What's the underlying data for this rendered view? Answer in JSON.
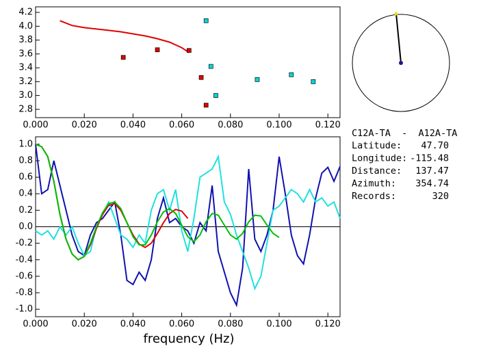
{
  "chart_data": [
    {
      "type": "scatter",
      "xlim": [
        0,
        0.125
      ],
      "xticks": [
        {
          "value": 0,
          "label": "0.000"
        },
        {
          "value": 0.02,
          "label": "0.020"
        },
        {
          "value": 0.04,
          "label": "0.040"
        },
        {
          "value": 0.06,
          "label": "0.060"
        },
        {
          "value": 0.08,
          "label": "0.080"
        },
        {
          "value": 0.1,
          "label": "0.100"
        },
        {
          "value": 0.12,
          "label": "0.120"
        }
      ],
      "ylim": [
        2.68,
        4.28
      ],
      "yticks": [
        2.8,
        {
          "value": 3,
          "label": "3.0"
        },
        3.2,
        3.4,
        3.6,
        3.8,
        {
          "value": 4,
          "label": "4.0"
        },
        4.2
      ],
      "series": [
        {
          "color": "#e00000",
          "mode": "line",
          "x": [
            0.01,
            0.015,
            0.02,
            0.025,
            0.03,
            0.035,
            0.04,
            0.045,
            0.05,
            0.055,
            0.06,
            0.063
          ],
          "values": [
            4.08,
            4.01,
            3.98,
            3.96,
            3.94,
            3.92,
            3.89,
            3.86,
            3.82,
            3.77,
            3.69,
            3.62
          ]
        },
        {
          "color": "#e00000",
          "mode": "marker",
          "x": [
            0.036,
            0.05,
            0.063,
            0.068,
            0.07
          ],
          "values": [
            3.55,
            3.66,
            3.65,
            3.26,
            2.86
          ]
        },
        {
          "color": "#00d8d8",
          "mode": "marker",
          "x": [
            0.07,
            0.072,
            0.074,
            0.091,
            0.105,
            0.114
          ],
          "values": [
            4.08,
            3.42,
            3.0,
            3.23,
            3.3,
            3.2
          ]
        }
      ]
    },
    {
      "type": "line",
      "xlabel": "frequency (Hz)",
      "xlim": [
        0,
        0.125
      ],
      "xticks": [
        {
          "value": 0,
          "label": "0.000"
        },
        {
          "value": 0.02,
          "label": "0.020"
        },
        {
          "value": 0.04,
          "label": "0.040"
        },
        {
          "value": 0.06,
          "label": "0.060"
        },
        {
          "value": 0.08,
          "label": "0.080"
        },
        {
          "value": 0.1,
          "label": "0.100"
        },
        {
          "value": 0.12,
          "label": "0.120"
        }
      ],
      "ylim": [
        -1.09,
        1.09
      ],
      "yticks": [
        {
          "value": -1,
          "label": "-1.0"
        },
        -0.8,
        -0.6,
        -0.4,
        -0.2,
        {
          "value": 0,
          "label": "0.0"
        },
        0.2,
        0.4,
        0.6,
        0.8,
        {
          "value": 1,
          "label": "1.0"
        }
      ],
      "zero_line": true,
      "x": [
        0,
        0.0025,
        0.005,
        0.0075,
        0.01,
        0.0125,
        0.015,
        0.0175,
        0.02,
        0.0225,
        0.025,
        0.0275,
        0.03,
        0.0325,
        0.035,
        0.0375,
        0.04,
        0.0425,
        0.045,
        0.0475,
        0.05,
        0.0525,
        0.055,
        0.0575,
        0.06,
        0.0625,
        0.065,
        0.0675,
        0.07,
        0.0725,
        0.075,
        0.0775,
        0.08,
        0.0825,
        0.085,
        0.0875,
        0.09,
        0.0925,
        0.095,
        0.0975,
        0.1,
        0.1025,
        0.105,
        0.1075,
        0.11,
        0.1125,
        0.115,
        0.1175,
        0.12,
        0.1225,
        0.125
      ],
      "series": [
        {
          "color": "#1010b0",
          "values": [
            1.0,
            0.4,
            0.45,
            0.8,
            0.5,
            0.2,
            -0.1,
            -0.3,
            -0.35,
            -0.1,
            0.05,
            0.1,
            0.2,
            0.3,
            -0.1,
            -0.65,
            -0.7,
            -0.55,
            -0.65,
            -0.4,
            0.1,
            0.35,
            0.05,
            0.1,
            0.0,
            -0.05,
            -0.2,
            0.05,
            -0.05,
            0.5,
            -0.3,
            -0.55,
            -0.8,
            -0.95,
            -0.5,
            0.7,
            -0.15,
            -0.3,
            -0.1,
            0.2,
            0.85,
            0.4,
            -0.1,
            -0.35,
            -0.45,
            -0.1,
            0.35,
            0.65,
            0.72,
            0.55,
            0.73
          ]
        },
        {
          "color": "#20e0e0",
          "values": [
            -0.05,
            -0.1,
            -0.05,
            -0.15,
            0.0,
            -0.1,
            0.0,
            -0.2,
            -0.35,
            -0.3,
            0.0,
            0.15,
            0.3,
            0.1,
            -0.1,
            -0.15,
            -0.25,
            -0.1,
            -0.2,
            0.2,
            0.4,
            0.45,
            0.2,
            0.45,
            -0.05,
            -0.3,
            0.1,
            0.6,
            0.65,
            0.7,
            0.85,
            0.3,
            0.15,
            -0.1,
            -0.3,
            -0.5,
            -0.75,
            -0.6,
            -0.2,
            0.2,
            0.25,
            0.35,
            0.45,
            0.4,
            0.3,
            0.45,
            0.3,
            0.35,
            0.25,
            0.3,
            0.1
          ]
        },
        {
          "color": "#e00000",
          "values": [
            1.0,
            0.97,
            0.85,
            0.55,
            0.15,
            -0.15,
            -0.33,
            -0.4,
            -0.36,
            -0.22,
            -0.02,
            0.15,
            0.26,
            0.28,
            0.2,
            0.05,
            -0.1,
            -0.21,
            -0.25,
            -0.2,
            -0.08,
            0.05,
            0.16,
            0.21,
            0.19,
            0.1,
            null,
            null,
            null,
            null,
            null,
            null,
            null,
            null,
            null,
            null,
            null,
            null,
            null,
            null,
            null,
            null,
            null,
            null,
            null,
            null,
            null,
            null,
            null,
            null,
            null
          ]
        },
        {
          "color": "#00c000",
          "values": [
            1.0,
            0.97,
            0.85,
            0.55,
            0.15,
            -0.15,
            -0.33,
            -0.4,
            -0.36,
            -0.2,
            0.0,
            0.17,
            0.28,
            0.3,
            0.22,
            0.05,
            -0.12,
            -0.22,
            -0.22,
            -0.1,
            0.06,
            0.18,
            0.22,
            0.16,
            0.02,
            -0.12,
            -0.18,
            -0.1,
            0.06,
            0.16,
            0.14,
            0.02,
            -0.1,
            -0.15,
            -0.08,
            0.06,
            0.14,
            0.13,
            0.02,
            -0.08,
            -0.13,
            null,
            null,
            null,
            null,
            null,
            null,
            null,
            null,
            null,
            null
          ]
        }
      ]
    }
  ],
  "info": {
    "title": "C12A-TA  -  A12A-TA",
    "rows": [
      {
        "label": "Latitude:",
        "value": "47.70"
      },
      {
        "label": "Longitude:",
        "value": "-115.48"
      },
      {
        "label": "Distance:",
        "value": "137.47"
      },
      {
        "label": "Azimuth:",
        "value": "354.74"
      },
      {
        "label": "Records:",
        "value": "320"
      }
    ]
  }
}
